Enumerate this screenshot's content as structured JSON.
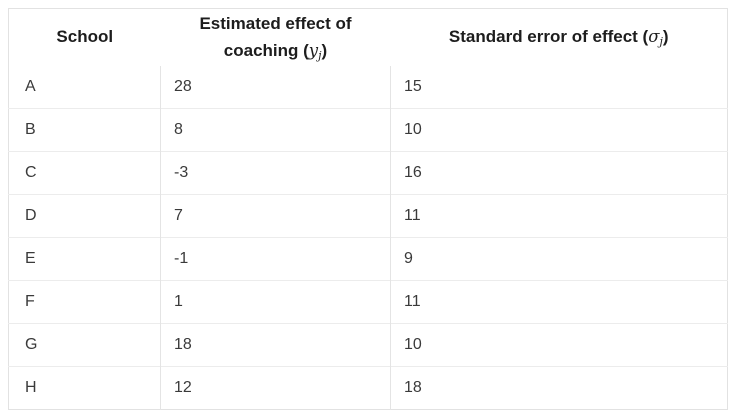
{
  "table": {
    "columns": {
      "school": {
        "label": "School"
      },
      "effect": {
        "line1": "Estimated effect of",
        "line2_prefix": "coaching (",
        "math_symbol": "y",
        "math_subscript": "j",
        "suffix": ")"
      },
      "stderr": {
        "prefix": "Standard error of effect (",
        "math_symbol": "σ",
        "math_subscript": "j",
        "suffix": ")"
      }
    },
    "rows": [
      {
        "school": "A",
        "effect": "28",
        "stderr": "15"
      },
      {
        "school": "B",
        "effect": "8",
        "stderr": "10"
      },
      {
        "school": "C",
        "effect": "-3",
        "stderr": "16"
      },
      {
        "school": "D",
        "effect": "7",
        "stderr": "11"
      },
      {
        "school": "E",
        "effect": "-1",
        "stderr": "9"
      },
      {
        "school": "F",
        "effect": "1",
        "stderr": "11"
      },
      {
        "school": "G",
        "effect": "18",
        "stderr": "10"
      },
      {
        "school": "H",
        "effect": "12",
        "stderr": "18"
      }
    ]
  },
  "chart_data": {
    "type": "table",
    "title": "",
    "columns": [
      "School",
      "Estimated effect of coaching (y_j)",
      "Standard error of effect (σ_j)"
    ],
    "rows": [
      [
        "A",
        28,
        15
      ],
      [
        "B",
        8,
        10
      ],
      [
        "C",
        -3,
        16
      ],
      [
        "D",
        7,
        11
      ],
      [
        "E",
        -1,
        9
      ],
      [
        "F",
        1,
        11
      ],
      [
        "G",
        18,
        10
      ],
      [
        "H",
        12,
        18
      ]
    ],
    "layout": {
      "grid": "light horizontal and vertical dividers in body only",
      "header": "bold, centered"
    }
  },
  "colors": {
    "background": "#ffffff",
    "outer_border": "#e2e2e2",
    "row_divider": "#ececec",
    "column_divider": "#e4e4e4",
    "header_text": "#1d1d1d",
    "body_text": "#3a3a3a"
  }
}
